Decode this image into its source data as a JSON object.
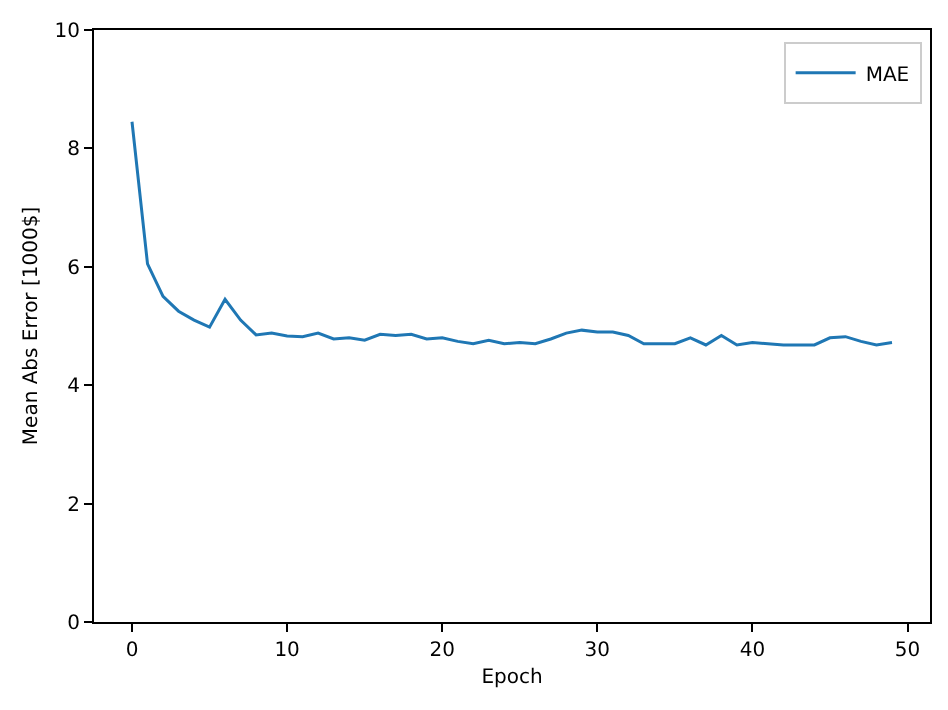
{
  "chart_data": {
    "type": "line",
    "xlabel": "Epoch",
    "ylabel": "Mean Abs Error [1000$]",
    "x": [
      0,
      1,
      2,
      3,
      4,
      5,
      6,
      7,
      8,
      9,
      10,
      11,
      12,
      13,
      14,
      15,
      16,
      17,
      18,
      19,
      20,
      21,
      22,
      23,
      24,
      25,
      26,
      27,
      28,
      29,
      30,
      31,
      32,
      33,
      34,
      35,
      36,
      37,
      38,
      39,
      40,
      41,
      42,
      43,
      44,
      45,
      46,
      47,
      48,
      49
    ],
    "series": [
      {
        "name": "MAE",
        "color": "#1f77b4",
        "values": [
          8.45,
          6.05,
          5.5,
          5.25,
          5.1,
          4.98,
          5.45,
          5.1,
          4.85,
          4.88,
          4.83,
          4.82,
          4.88,
          4.78,
          4.8,
          4.76,
          4.86,
          4.84,
          4.86,
          4.78,
          4.8,
          4.74,
          4.7,
          4.76,
          4.7,
          4.72,
          4.7,
          4.78,
          4.88,
          4.93,
          4.9,
          4.9,
          4.84,
          4.7,
          4.7,
          4.7,
          4.8,
          4.68,
          4.84,
          4.68,
          4.72,
          4.7,
          4.68,
          4.68,
          4.68,
          4.8,
          4.82,
          4.74,
          4.68,
          4.72
        ]
      }
    ],
    "xlim": [
      -2.45,
      51.45
    ],
    "xticks": [
      0,
      10,
      20,
      30,
      40,
      50
    ],
    "ylim": [
      0,
      10
    ],
    "yticks": [
      0,
      2,
      4,
      6,
      8,
      10
    ],
    "legend": "top right",
    "marker": "none",
    "line_style": "solid"
  }
}
